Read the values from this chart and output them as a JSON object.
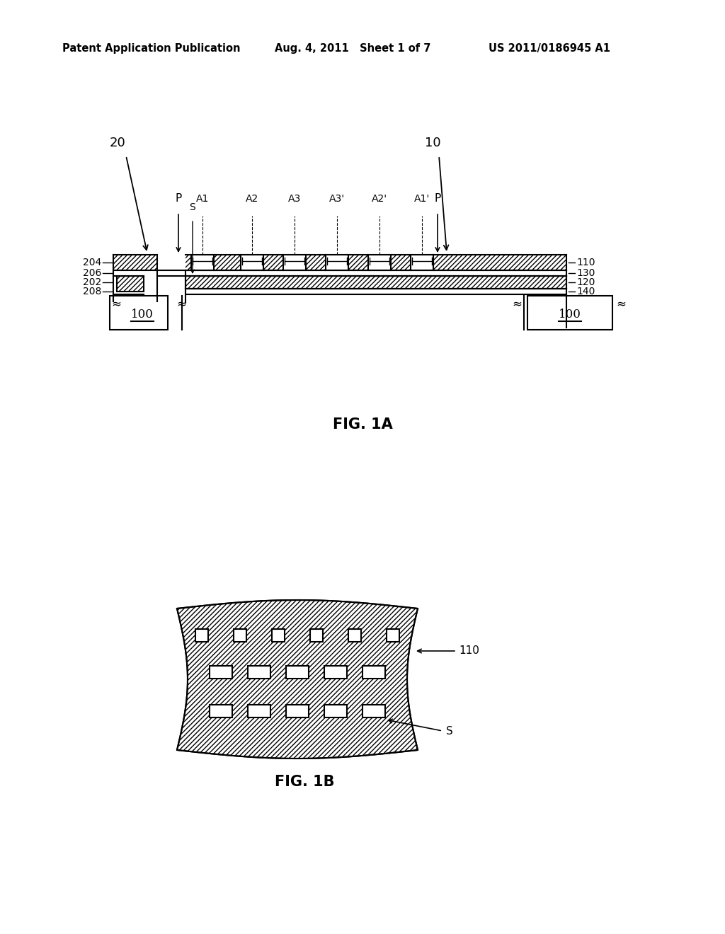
{
  "bg_color": "#ffffff",
  "line_color": "#000000",
  "header_left": "Patent Application Publication",
  "header_mid": "Aug. 4, 2011   Sheet 1 of 7",
  "header_right": "US 2011/0186945 A1",
  "fig1a_label": "FIG. 1A",
  "fig1b_label": "FIG. 1B",
  "label_20": "20",
  "label_10": "10",
  "label_204": "204",
  "label_206": "206",
  "label_202": "202",
  "label_208": "208",
  "label_110": "110",
  "label_130": "130",
  "label_120": "120",
  "label_140": "140",
  "label_100": "100",
  "label_110b": "110",
  "label_Sb": "S",
  "hole_labels": [
    "A1",
    "A2",
    "A3",
    "A3'",
    "A2'",
    "A1'"
  ]
}
